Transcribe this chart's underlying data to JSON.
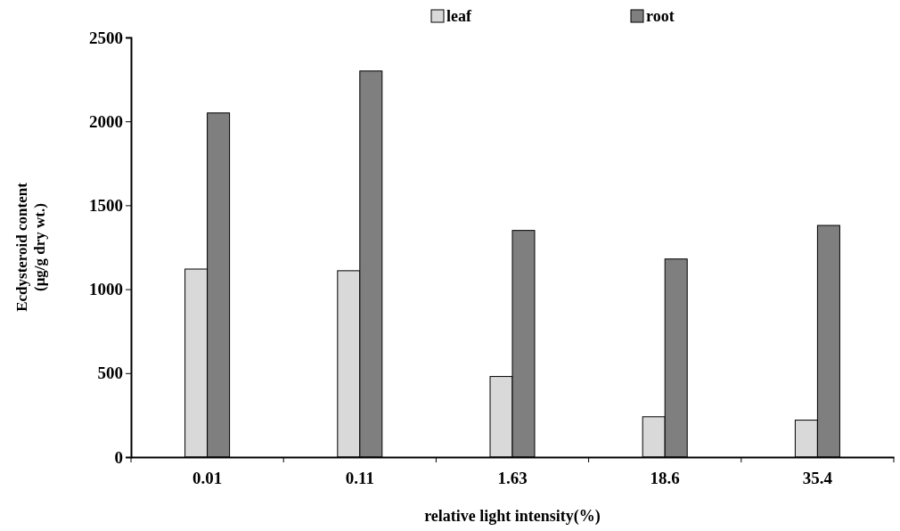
{
  "chart_data": {
    "type": "bar",
    "categories": [
      "0.01",
      "0.11",
      "1.63",
      "18.6",
      "35.4"
    ],
    "series": [
      {
        "name": "leaf",
        "color": "#d9d9d9",
        "values": [
          1120,
          1110,
          480,
          240,
          220
        ]
      },
      {
        "name": "root",
        "color": "#7f7f7f",
        "values": [
          2050,
          2300,
          1350,
          1180,
          1380
        ]
      }
    ],
    "xlabel": "relative light intensity(%)",
    "ylabel": "Ecdysteroid content\n(μg/g dry wt.)",
    "ylim": [
      0,
      2500
    ],
    "yticks": [
      0,
      500,
      1000,
      1500,
      2000,
      2500
    ],
    "grid": false,
    "legend": "top"
  }
}
